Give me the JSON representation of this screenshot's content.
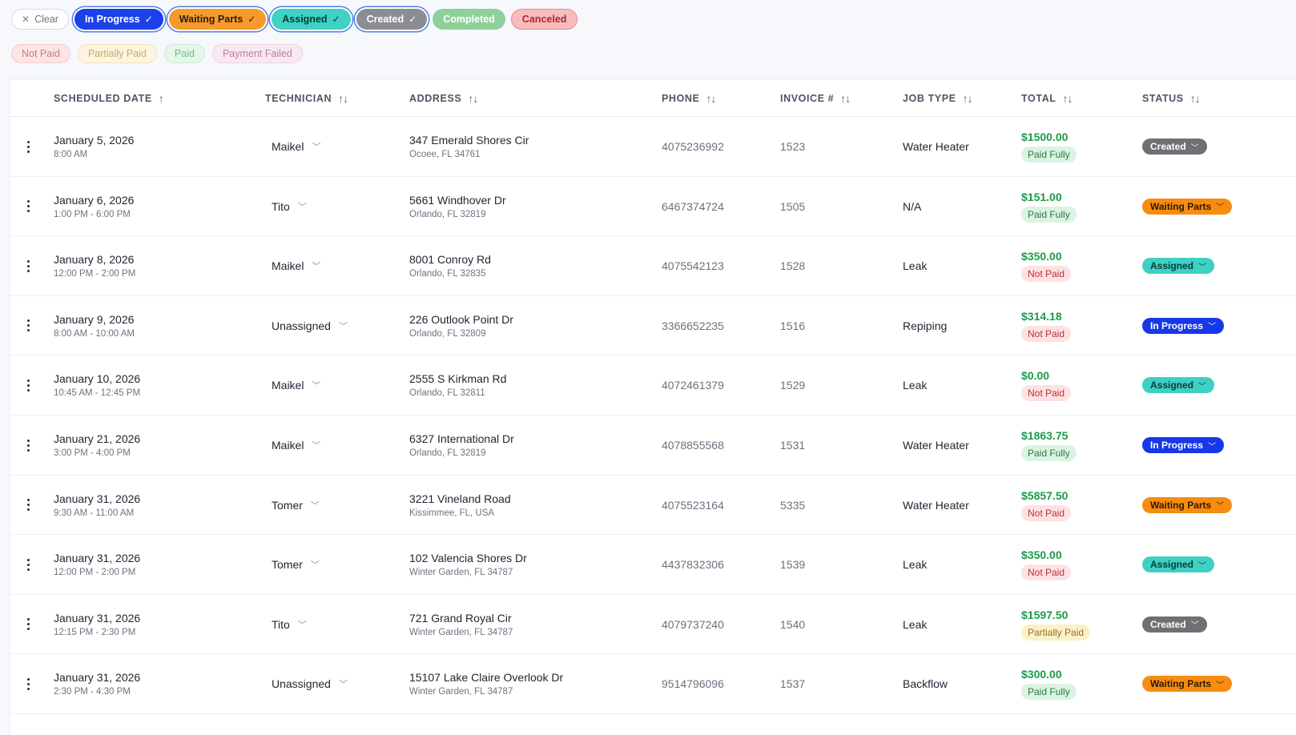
{
  "status_filters": {
    "clear_label": "Clear",
    "chips": [
      {
        "label": "In Progress",
        "selected": true,
        "key": "inprogress"
      },
      {
        "label": "Waiting Parts",
        "selected": true,
        "key": "waiting"
      },
      {
        "label": "Assigned",
        "selected": true,
        "key": "assigned"
      },
      {
        "label": "Created",
        "selected": true,
        "key": "created"
      },
      {
        "label": "Completed",
        "selected": false,
        "key": "completed"
      },
      {
        "label": "Canceled",
        "selected": false,
        "key": "canceled"
      }
    ]
  },
  "payment_filters": [
    {
      "label": "Not Paid",
      "key": "notpaid"
    },
    {
      "label": "Partially Paid",
      "key": "partial"
    },
    {
      "label": "Paid",
      "key": "paid"
    },
    {
      "label": "Payment Failed",
      "key": "failed"
    }
  ],
  "columns": {
    "scheduled_date": "SCHEDULED DATE",
    "technician": "TECHNICIAN",
    "address": "ADDRESS",
    "phone": "PHONE",
    "invoice": "INVOICE #",
    "job_type": "JOB TYPE",
    "total": "TOTAL",
    "status": "STATUS"
  },
  "rows": [
    {
      "date": "January 5, 2026",
      "time": "8:00 AM",
      "tech": "Maikel",
      "addr1": "347 Emerald Shores Cir",
      "addr2": "Ocoee, FL 34761",
      "phone": "4075236992",
      "invoice": "1523",
      "job": "Water Heater",
      "total": "$1500.00",
      "payment": "Paid Fully",
      "pay_key": "paid",
      "status": "Created",
      "status_key": "created"
    },
    {
      "date": "January 6, 2026",
      "time": "1:00 PM - 6:00 PM",
      "tech": "Tito",
      "addr1": "5661 Windhover Dr",
      "addr2": "Orlando, FL 32819",
      "phone": "6467374724",
      "invoice": "1505",
      "job": "N/A",
      "total": "$151.00",
      "payment": "Paid Fully",
      "pay_key": "paid",
      "status": "Waiting Parts",
      "status_key": "waiting"
    },
    {
      "date": "January 8, 2026",
      "time": "12:00 PM - 2:00 PM",
      "tech": "Maikel",
      "addr1": "8001 Conroy Rd",
      "addr2": "Orlando, FL 32835",
      "phone": "4075542123",
      "invoice": "1528",
      "job": "Leak",
      "total": "$350.00",
      "payment": "Not Paid",
      "pay_key": "notpaid",
      "status": "Assigned",
      "status_key": "assigned"
    },
    {
      "date": "January 9, 2026",
      "time": "8:00 AM - 10:00 AM",
      "tech": "Unassigned",
      "addr1": "226 Outlook Point Dr",
      "addr2": "Orlando, FL 32809",
      "phone": "3366652235",
      "invoice": "1516",
      "job": "Repiping",
      "total": "$314.18",
      "payment": "Not Paid",
      "pay_key": "notpaid",
      "status": "In Progress",
      "status_key": "inprogress"
    },
    {
      "date": "January 10, 2026",
      "time": "10:45 AM - 12:45 PM",
      "tech": "Maikel",
      "addr1": "2555 S Kirkman Rd",
      "addr2": "Orlando, FL 32811",
      "phone": "4072461379",
      "invoice": "1529",
      "job": "Leak",
      "total": "$0.00",
      "payment": "Not Paid",
      "pay_key": "notpaid",
      "status": "Assigned",
      "status_key": "assigned"
    },
    {
      "date": "January 21, 2026",
      "time": "3:00 PM - 4:00 PM",
      "tech": "Maikel",
      "addr1": "6327 International Dr",
      "addr2": "Orlando, FL 32819",
      "phone": "4078855568",
      "invoice": "1531",
      "job": "Water Heater",
      "total": "$1863.75",
      "payment": "Paid Fully",
      "pay_key": "paid",
      "status": "In Progress",
      "status_key": "inprogress"
    },
    {
      "date": "January 31, 2026",
      "time": "9:30 AM - 11:00 AM",
      "tech": "Tomer",
      "addr1": "3221 Vineland Road",
      "addr2": "Kissimmee, FL, USA",
      "phone": "4075523164",
      "invoice": "5335",
      "job": "Water Heater",
      "total": "$5857.50",
      "payment": "Not Paid",
      "pay_key": "notpaid",
      "status": "Waiting Parts",
      "status_key": "waiting"
    },
    {
      "date": "January 31, 2026",
      "time": "12:00 PM - 2:00 PM",
      "tech": "Tomer",
      "addr1": "102 Valencia Shores Dr",
      "addr2": "Winter Garden, FL 34787",
      "phone": "4437832306",
      "invoice": "1539",
      "job": "Leak",
      "total": "$350.00",
      "payment": "Not Paid",
      "pay_key": "notpaid",
      "status": "Assigned",
      "status_key": "assigned"
    },
    {
      "date": "January 31, 2026",
      "time": "12:15 PM - 2:30 PM",
      "tech": "Tito",
      "addr1": "721 Grand Royal Cir",
      "addr2": "Winter Garden, FL 34787",
      "phone": "4079737240",
      "invoice": "1540",
      "job": "Leak",
      "total": "$1597.50",
      "payment": "Partially Paid",
      "pay_key": "partial",
      "status": "Created",
      "status_key": "created"
    },
    {
      "date": "January 31, 2026",
      "time": "2:30 PM - 4:30 PM",
      "tech": "Unassigned",
      "addr1": "15107 Lake Claire Overlook Dr",
      "addr2": "Winter Garden, FL 34787",
      "phone": "9514796096",
      "invoice": "1537",
      "job": "Backflow",
      "total": "$300.00",
      "payment": "Paid Fully",
      "pay_key": "paid",
      "status": "Waiting Parts",
      "status_key": "waiting"
    }
  ]
}
